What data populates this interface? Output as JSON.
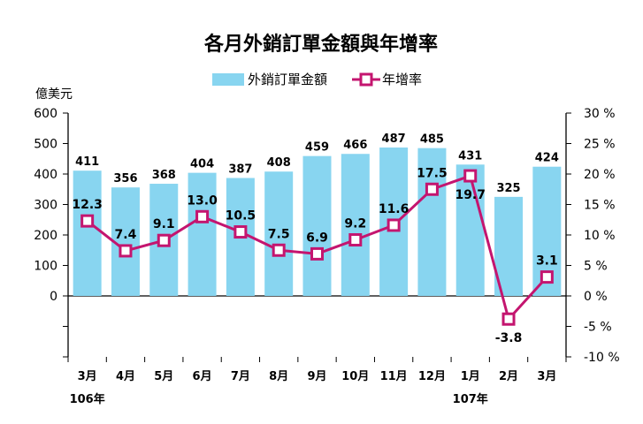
{
  "chart_data": {
    "type": "bar",
    "title": "各月外銷訂單金額與年增率",
    "ylabel": "億美元",
    "categories": [
      "3月",
      "4月",
      "5月",
      "6月",
      "7月",
      "8月",
      "9月",
      "10月",
      "11月",
      "12月",
      "1月",
      "2月",
      "3月"
    ],
    "year_labels": [
      {
        "index": 0,
        "label": "106年"
      },
      {
        "index": 10,
        "label": "107年"
      }
    ],
    "series": [
      {
        "name": "外銷訂單金額",
        "type": "bar",
        "axis": "left",
        "values": [
          411,
          356,
          368,
          404,
          387,
          408,
          459,
          466,
          487,
          485,
          431,
          325,
          424
        ]
      },
      {
        "name": "年增率",
        "type": "line",
        "axis": "right",
        "values": [
          12.3,
          7.4,
          9.1,
          13.0,
          10.5,
          7.5,
          6.9,
          9.2,
          11.6,
          17.5,
          19.7,
          -3.8,
          3.1
        ]
      }
    ],
    "bar_value_labels": [
      "411",
      "356",
      "368",
      "404",
      "387",
      "408",
      "459",
      "466",
      "487",
      "485",
      "431",
      "325",
      "424"
    ],
    "line_value_labels": [
      "12.3",
      "7.4",
      "9.1",
      "13.0",
      "10.5",
      "7.5",
      "6.9",
      "9.2",
      "11.6",
      "17.5",
      "19.7",
      "-3.8",
      "3.1"
    ],
    "left_axis": {
      "ylim": [
        -200,
        600
      ],
      "ticks": [
        "600",
        "500",
        "400",
        "300",
        "200",
        "100",
        "0"
      ],
      "tick_values": [
        600,
        500,
        400,
        300,
        200,
        100,
        0
      ]
    },
    "right_axis": {
      "ylim": [
        -10,
        30
      ],
      "ticks": [
        "30 %",
        "25 %",
        "20 %",
        "15 %",
        "10 %",
        "5 %",
        "0 %",
        "-5 %",
        "-10 %"
      ],
      "tick_values": [
        30,
        25,
        20,
        15,
        10,
        5,
        0,
        -5,
        -10
      ]
    },
    "legend": {
      "placement": "top-center",
      "bar_label": "外銷訂單金額",
      "line_label": "年增率"
    },
    "grid": false,
    "colors": {
      "bar": "#88d5f0",
      "line": "#c4156f",
      "marker_fill": "#ffffff",
      "axis": "#000000"
    }
  }
}
